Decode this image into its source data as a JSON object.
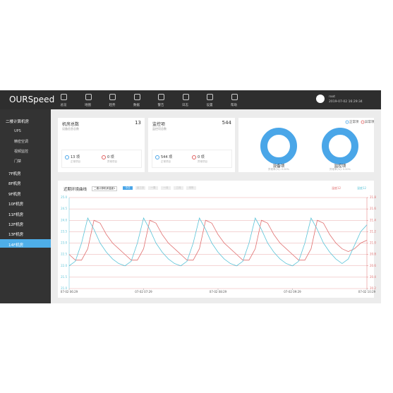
{
  "header": {
    "brand": "OURSpeed",
    "nav": [
      "总览",
      "地图",
      "趋势",
      "数据",
      "警告",
      "日志",
      "设置",
      "帮助"
    ],
    "user": "root",
    "datetime": "2019-07-02 16:29:34"
  },
  "sidebar": {
    "group": "二楼计算机房",
    "subitems": [
      "UPS",
      "精密空调",
      "视频监控",
      "门禁"
    ],
    "rooms": [
      "7F机房",
      "8F机房",
      "9F机房",
      "10F机房",
      "11F机房",
      "12F机房",
      "13F机房",
      "14F机房"
    ]
  },
  "cards": [
    {
      "title": "机房总数",
      "total": 13,
      "subtitle": "设备信息总数",
      "normal": "13 项",
      "normal_label": "正常项目",
      "abnormal": "0 项",
      "abnormal_label": "异常项目"
    },
    {
      "title": "监控项",
      "total": 544,
      "subtitle": "监控项总数",
      "normal": "544 项",
      "normal_label": "正常项目",
      "abnormal": "0 项",
      "abnormal_label": "异常项目"
    }
  ],
  "donuts": {
    "legend": [
      "正常项",
      "异常项"
    ],
    "items": [
      {
        "label": "设备项",
        "rate": "异常率(%): 0.00%"
      },
      {
        "label": "监控项",
        "rate": "异常率(%): 0.00%"
      }
    ]
  },
  "chart_panel": {
    "title": "近期环境曲线",
    "select": "二楼计算机房温度1",
    "buttons": [
      "今日",
      "近三日",
      "一周",
      "一月",
      "三月",
      "半年"
    ]
  },
  "chart_data": {
    "type": "line",
    "x": [
      0,
      5,
      10,
      15,
      20,
      25,
      30,
      35,
      40,
      45,
      50,
      55,
      60,
      65,
      70,
      75,
      80,
      85,
      90,
      95,
      100,
      105,
      110,
      115,
      120,
      125,
      130,
      135,
      140,
      145,
      150,
      155,
      160,
      165,
      170,
      175,
      180,
      185,
      190,
      195,
      200,
      205,
      210,
      215,
      220,
      225,
      230,
      235,
      240
    ],
    "xlim": [
      0,
      240
    ],
    "xticks": [
      {
        "value": 0,
        "label": "07-02 06:29"
      },
      {
        "value": 60,
        "label": "07-02 07:29"
      },
      {
        "value": 120,
        "label": "07-02 08:29"
      },
      {
        "value": 180,
        "label": "07-02 09:29"
      },
      {
        "value": 240,
        "label": "07-02 10:29"
      }
    ],
    "ylim": [
      21,
      25
    ],
    "yticks": [
      {
        "value": 21,
        "label": "21.0"
      },
      21.5,
      {
        "value": 22,
        "label": "22.0"
      },
      22.5,
      {
        "value": 23,
        "label": "23.0"
      },
      23.5,
      {
        "value": 24,
        "label": "24.0"
      },
      24.5,
      {
        "value": 25,
        "label": "25.0"
      }
    ],
    "y2lim": [
      20.2,
      21.8
    ],
    "y2ticks": [
      20.2,
      20.4,
      20.6,
      20.8,
      {
        "value": 21,
        "label": "21.0"
      },
      21.2,
      21.4,
      21.6,
      21.8
    ],
    "grid": true,
    "series": [
      {
        "name": "温度12",
        "color": "#e07070",
        "axis": "y2",
        "values": [
          20.8,
          20.7,
          20.7,
          20.9,
          21.4,
          21.35,
          21.15,
          21.0,
          20.9,
          20.8,
          20.7,
          20.7,
          20.9,
          21.4,
          21.35,
          21.15,
          21.0,
          20.9,
          20.8,
          20.7,
          20.7,
          20.9,
          21.4,
          21.35,
          21.15,
          21.0,
          20.9,
          20.8,
          20.7,
          20.7,
          20.9,
          21.4,
          21.35,
          21.15,
          21.0,
          20.9,
          20.8,
          20.7,
          20.7,
          20.9,
          21.4,
          21.35,
          21.15,
          21.0,
          20.9,
          20.85,
          20.9,
          21.0,
          21.05
        ]
      },
      {
        "name": "湿度12",
        "color": "#5cc4d8",
        "values": [
          22.0,
          22.2,
          23.0,
          24.1,
          23.6,
          23.0,
          22.6,
          22.3,
          22.1,
          22.0,
          22.2,
          23.0,
          24.1,
          23.6,
          23.0,
          22.6,
          22.3,
          22.1,
          22.0,
          22.2,
          23.0,
          24.1,
          23.6,
          23.0,
          22.6,
          22.3,
          22.1,
          22.0,
          22.2,
          23.0,
          24.1,
          23.6,
          23.0,
          22.6,
          22.3,
          22.1,
          22.0,
          22.2,
          23.0,
          24.1,
          23.6,
          23.0,
          22.6,
          22.3,
          22.1,
          22.3,
          22.9,
          23.5,
          23.8
        ]
      }
    ]
  }
}
